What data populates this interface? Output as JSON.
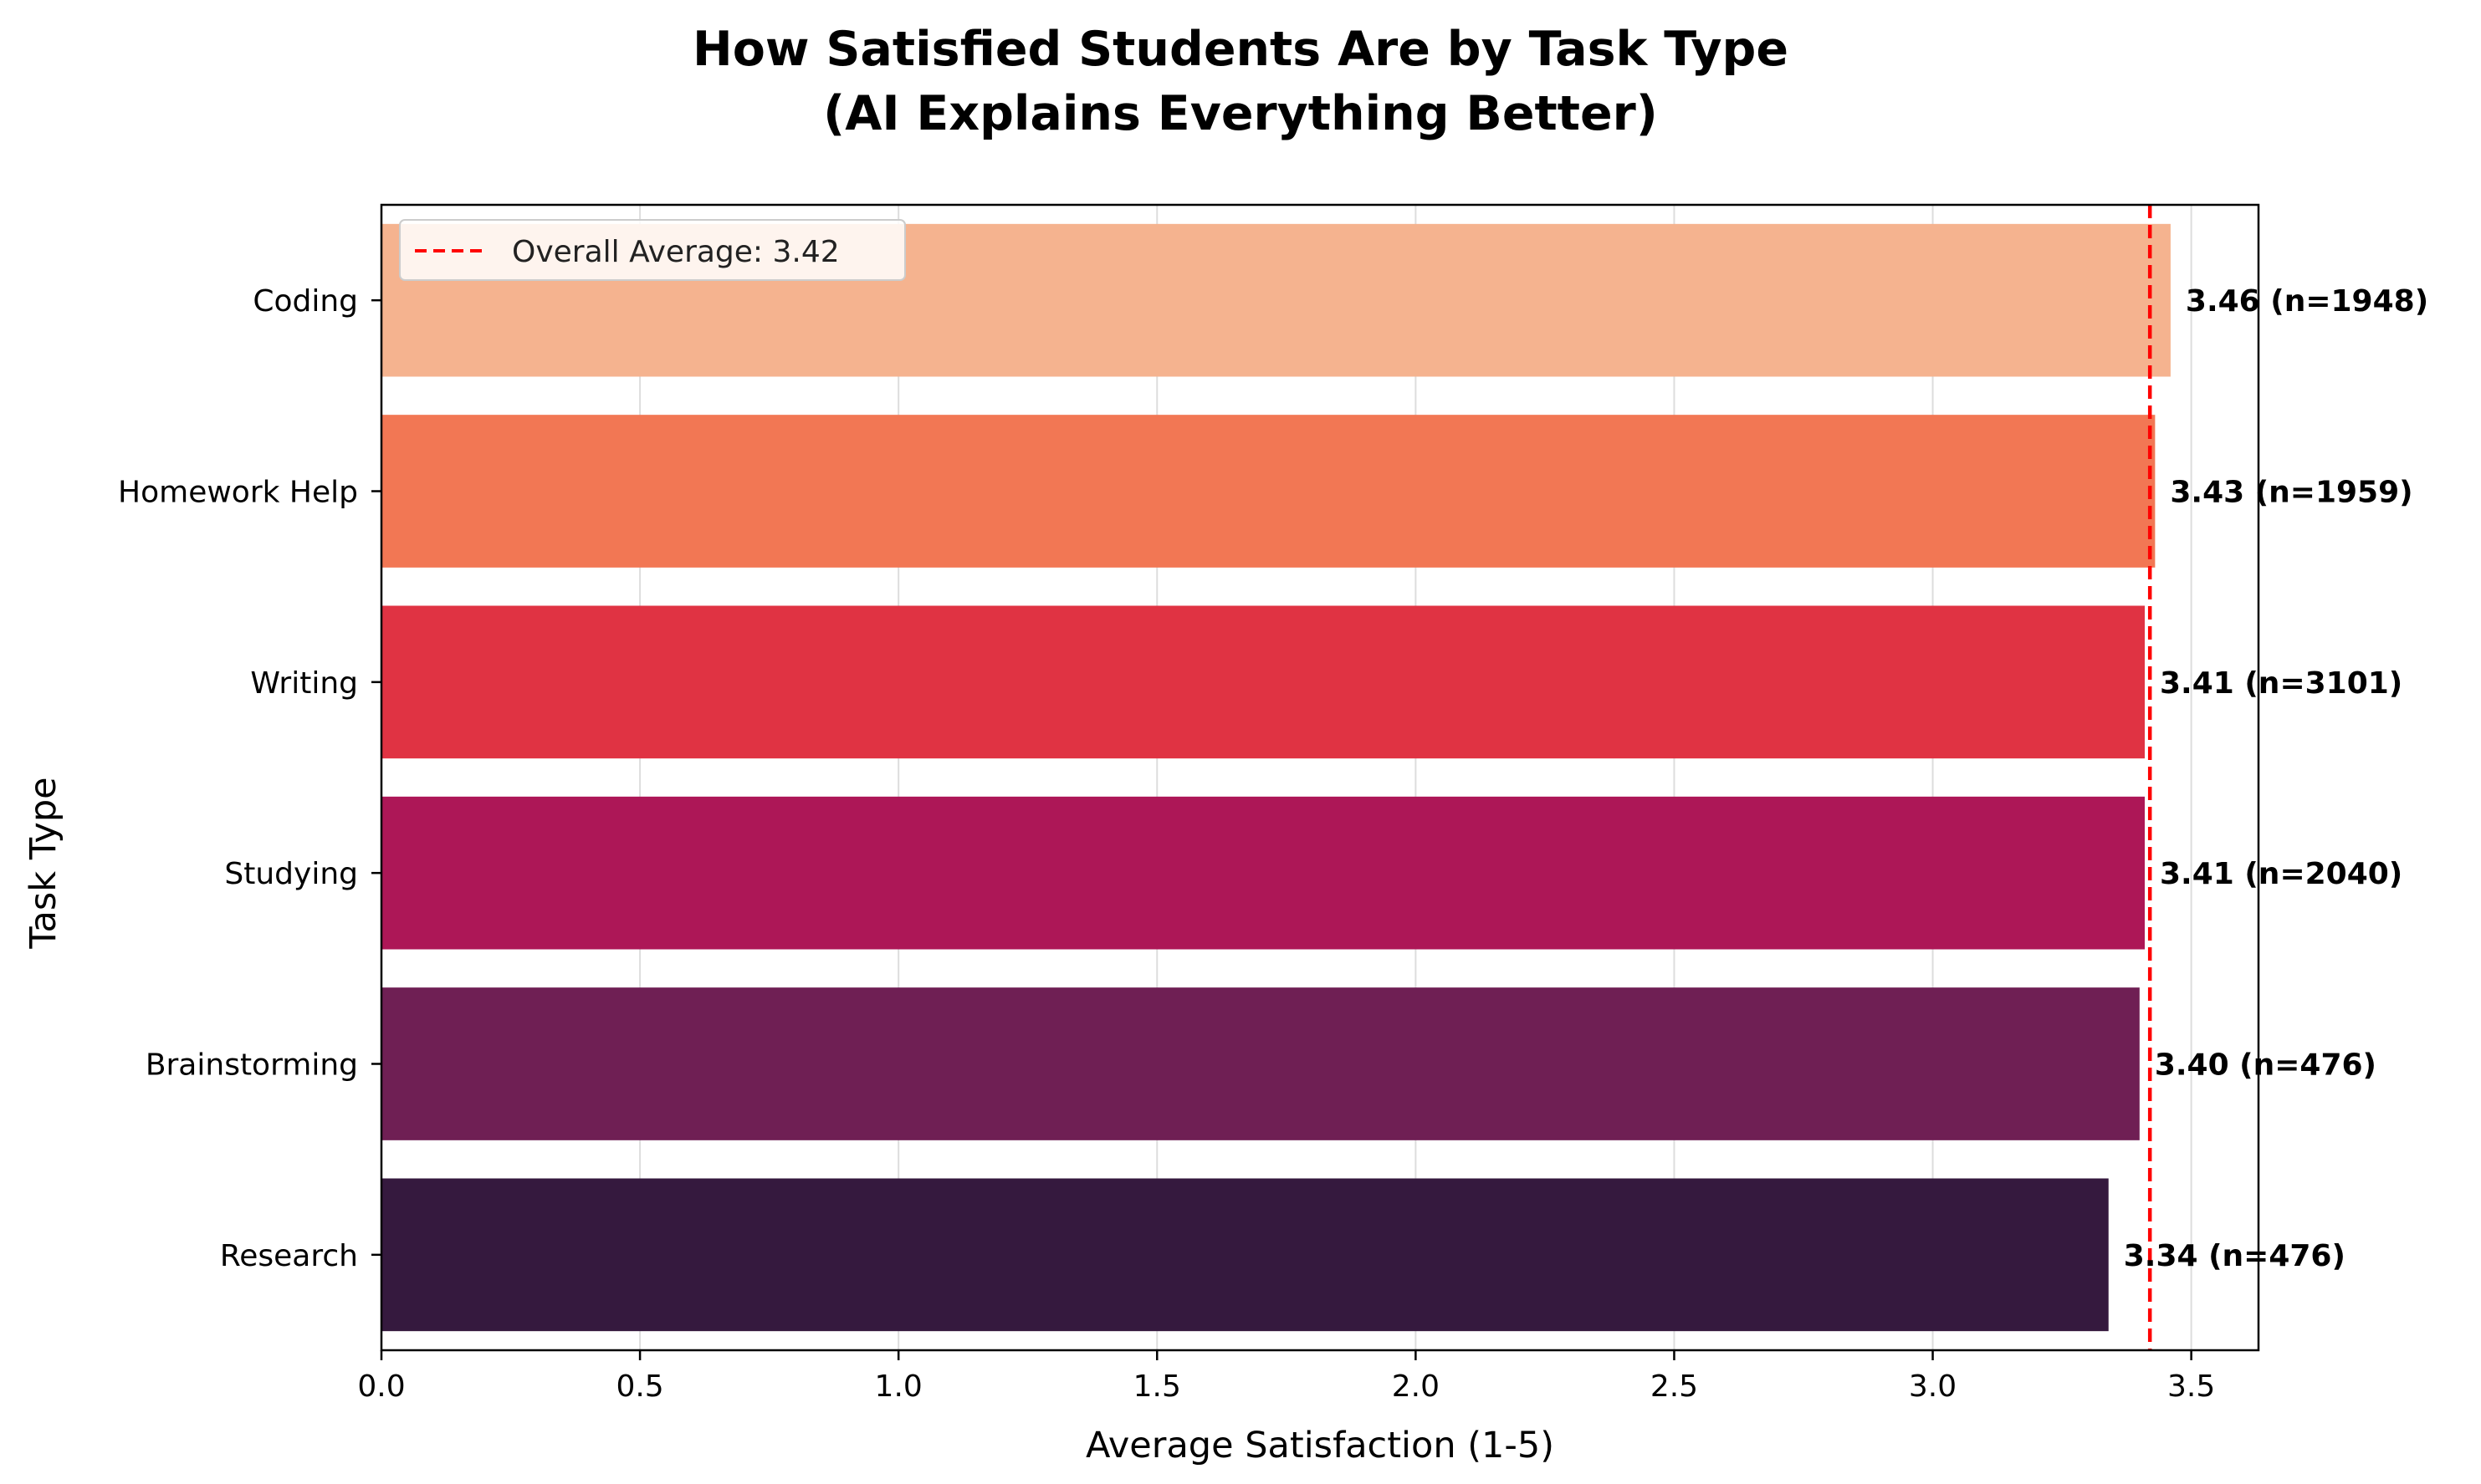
{
  "chart_data": {
    "type": "bar",
    "orientation": "horizontal",
    "title_lines": [
      "How Satisfied Students Are by Task Type",
      "(AI Explains Everything Better)"
    ],
    "xlabel": "Average Satisfaction (1-5)",
    "ylabel": "Task Type",
    "xlim": [
      0,
      3.63
    ],
    "xticks": [
      "0.0",
      "0.5",
      "1.0",
      "1.5",
      "2.0",
      "2.5",
      "3.0",
      "3.5"
    ],
    "xtick_values": [
      0,
      0.5,
      1.0,
      1.5,
      2.0,
      2.5,
      3.0,
      3.5
    ],
    "grid": "vertical",
    "categories": [
      "Coding",
      "Homework Help",
      "Writing",
      "Studying",
      "Brainstorming",
      "Research"
    ],
    "values": [
      3.46,
      3.43,
      3.41,
      3.41,
      3.4,
      3.34
    ],
    "counts": [
      1948,
      1959,
      3101,
      2040,
      476,
      476
    ],
    "data_labels": [
      "3.46 (n=1948)",
      "3.43 (n=1959)",
      "3.41 (n=3101)",
      "3.41 (n=2040)",
      "3.40 (n=476)",
      "3.34 (n=476)"
    ],
    "colors": [
      "#f5b38f",
      "#f27754",
      "#e03343",
      "#ad1757",
      "#6f1f54",
      "#35193e"
    ],
    "reference_line": {
      "value": 3.42,
      "color": "#ff0000",
      "style": "dashed"
    },
    "legend": {
      "placement": "top-left",
      "entries": [
        "Overall Average: 3.42"
      ]
    }
  }
}
